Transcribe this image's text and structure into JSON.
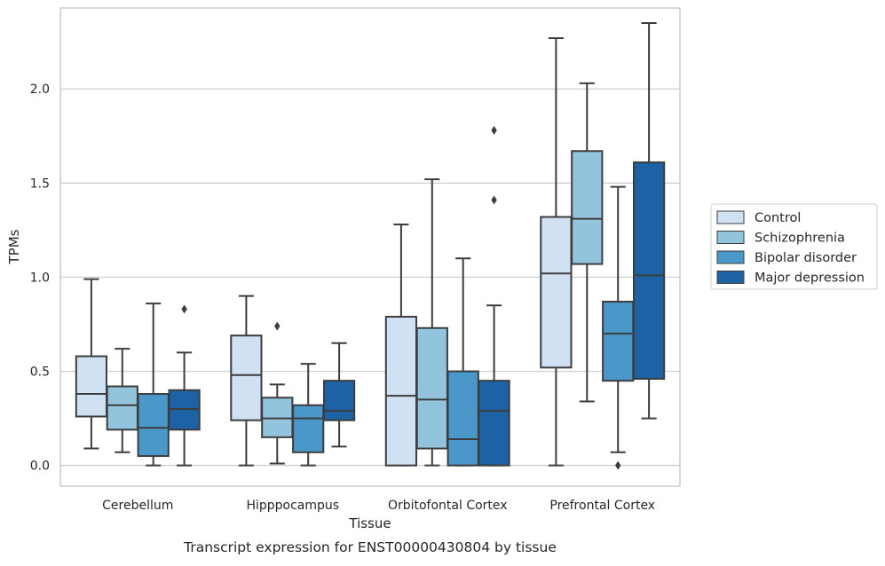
{
  "chart_data": {
    "type": "boxplot",
    "caption": "Transcript expression for ENST00000430804 by tissue",
    "xlabel": "Tissue",
    "ylabel": "TPMs",
    "ylim": [
      -0.11,
      2.43
    ],
    "yticks": [
      0.0,
      0.5,
      1.0,
      1.5,
      2.0
    ],
    "ytick_labels": [
      "0.0",
      "0.5",
      "1.0",
      "1.5",
      "2.0"
    ],
    "grid": "horizontal",
    "legend_position": "right",
    "categories": [
      "Cerebellum",
      "Hipppocampus",
      "Orbitofontal Cortex",
      "Prefrontal Cortex"
    ],
    "series": [
      {
        "name": "Control",
        "color": "#cfe1f2",
        "boxes": [
          {
            "whislo": 0.09,
            "q1": 0.26,
            "med": 0.38,
            "q3": 0.58,
            "whishi": 0.99,
            "fliers": []
          },
          {
            "whislo": 0.0,
            "q1": 0.24,
            "med": 0.48,
            "q3": 0.69,
            "whishi": 0.9,
            "fliers": []
          },
          {
            "whislo": 0.0,
            "q1": 0.0,
            "med": 0.37,
            "q3": 0.79,
            "whishi": 1.28,
            "fliers": []
          },
          {
            "whislo": 0.0,
            "q1": 0.52,
            "med": 1.02,
            "q3": 1.32,
            "whishi": 2.27,
            "fliers": []
          }
        ]
      },
      {
        "name": "Schizophrenia",
        "color": "#93c4de",
        "boxes": [
          {
            "whislo": 0.07,
            "q1": 0.19,
            "med": 0.32,
            "q3": 0.42,
            "whishi": 0.62,
            "fliers": []
          },
          {
            "whislo": 0.01,
            "q1": 0.15,
            "med": 0.25,
            "q3": 0.36,
            "whishi": 0.43,
            "fliers": [
              0.74
            ]
          },
          {
            "whislo": 0.0,
            "q1": 0.09,
            "med": 0.35,
            "q3": 0.73,
            "whishi": 1.52,
            "fliers": []
          },
          {
            "whislo": 0.34,
            "q1": 1.07,
            "med": 1.31,
            "q3": 1.67,
            "whishi": 2.03,
            "fliers": []
          }
        ]
      },
      {
        "name": "Bipolar disorder",
        "color": "#4a98c9",
        "boxes": [
          {
            "whislo": 0.0,
            "q1": 0.05,
            "med": 0.2,
            "q3": 0.38,
            "whishi": 0.86,
            "fliers": []
          },
          {
            "whislo": 0.0,
            "q1": 0.07,
            "med": 0.25,
            "q3": 0.32,
            "whishi": 0.54,
            "fliers": []
          },
          {
            "whislo": 0.0,
            "q1": 0.0,
            "med": 0.14,
            "q3": 0.5,
            "whishi": 1.1,
            "fliers": []
          },
          {
            "whislo": 0.07,
            "q1": 0.45,
            "med": 0.7,
            "q3": 0.87,
            "whishi": 1.48,
            "fliers": [
              0.0
            ]
          }
        ]
      },
      {
        "name": "Major depression",
        "color": "#1c62a4",
        "boxes": [
          {
            "whislo": 0.0,
            "q1": 0.19,
            "med": 0.3,
            "q3": 0.4,
            "whishi": 0.6,
            "fliers": [
              0.83
            ]
          },
          {
            "whislo": 0.1,
            "q1": 0.24,
            "med": 0.29,
            "q3": 0.45,
            "whishi": 0.65,
            "fliers": []
          },
          {
            "whislo": 0.0,
            "q1": 0.0,
            "med": 0.29,
            "q3": 0.45,
            "whishi": 0.85,
            "fliers": [
              1.41,
              1.78
            ]
          },
          {
            "whislo": 0.25,
            "q1": 0.46,
            "med": 1.01,
            "q3": 1.61,
            "whishi": 2.35,
            "fliers": []
          }
        ]
      }
    ]
  }
}
